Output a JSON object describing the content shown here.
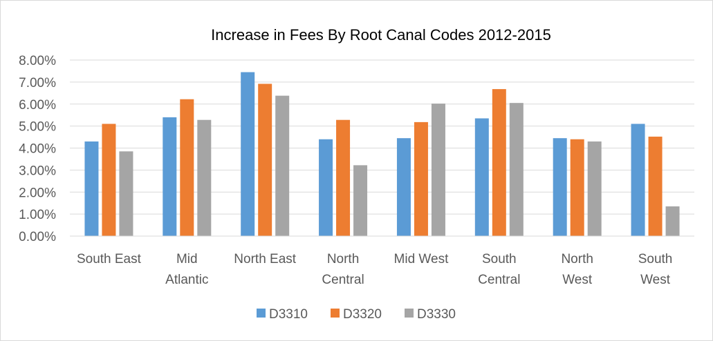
{
  "chart_data": {
    "type": "bar",
    "title": "Increase in Fees By Root Canal Codes 2012-2015",
    "categories": [
      [
        "South East"
      ],
      [
        "Mid",
        "Atlantic"
      ],
      [
        "North East"
      ],
      [
        "North",
        "Central"
      ],
      [
        "Mid West"
      ],
      [
        "South",
        "Central"
      ],
      [
        "North",
        "West"
      ],
      [
        "South",
        "West"
      ]
    ],
    "series": [
      {
        "name": "D3310",
        "color": "#5b9bd5",
        "values": [
          4.3,
          5.4,
          7.45,
          4.4,
          4.45,
          5.35,
          4.45,
          5.1
        ]
      },
      {
        "name": "D3320",
        "color": "#ed7d31",
        "values": [
          5.1,
          6.22,
          6.92,
          5.28,
          5.18,
          6.68,
          4.4,
          4.52
        ]
      },
      {
        "name": "D3330",
        "color": "#a5a5a5",
        "values": [
          3.85,
          5.28,
          6.38,
          3.22,
          6.02,
          6.05,
          4.3,
          1.35
        ]
      }
    ],
    "ylim": [
      0,
      8
    ],
    "yticks": [
      "0.00%",
      "1.00%",
      "2.00%",
      "3.00%",
      "4.00%",
      "5.00%",
      "6.00%",
      "7.00%",
      "8.00%"
    ],
    "grid": true,
    "legend_position": "bottom",
    "xlabel": "",
    "ylabel": ""
  }
}
